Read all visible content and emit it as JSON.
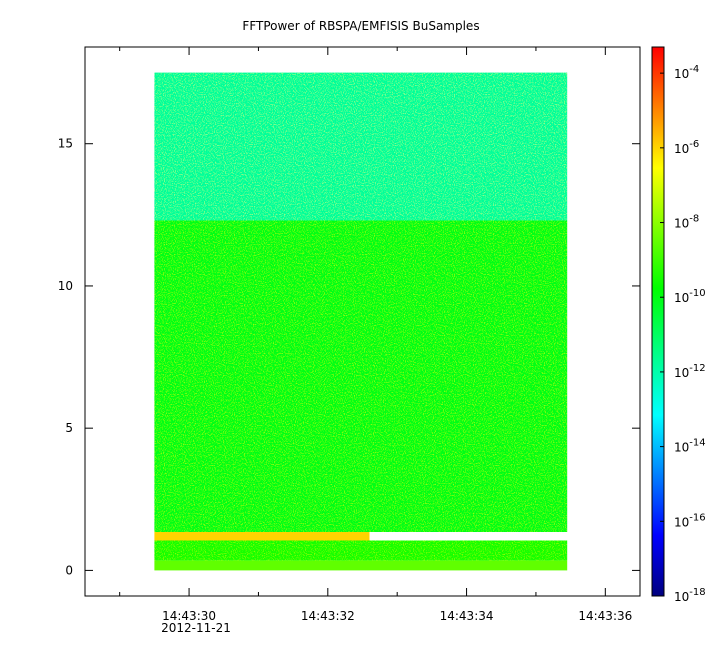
{
  "chart_data": {
    "type": "heatmap",
    "title": "FFTPower of RBSPA/EMFISIS  BuSamples",
    "xlabel": "",
    "ylabel": "",
    "x_axis": {
      "ticks": [
        {
          "t": 30,
          "label": "14:43:30"
        },
        {
          "t": 32,
          "label": "14:43:32"
        },
        {
          "t": 34,
          "label": "14:43:34"
        },
        {
          "t": 36,
          "label": "14:43:36"
        }
      ],
      "minor_ticks": [
        29,
        31,
        33,
        35
      ],
      "date_label": "2012-11-21",
      "range_seconds": [
        28.5,
        36.5
      ]
    },
    "y_axis": {
      "ticks": [
        0,
        5,
        10,
        15
      ],
      "range": [
        -0.9,
        18.4
      ]
    },
    "colorbar": {
      "scale": "log",
      "range_exponent": [
        -18,
        -3.3
      ],
      "ticks": [
        {
          "exp": -4,
          "base": "10",
          "sup": "-4"
        },
        {
          "exp": -6,
          "base": "10",
          "sup": "-6"
        },
        {
          "exp": -8,
          "base": "10",
          "sup": "-8"
        },
        {
          "exp": -10,
          "base": "10",
          "sup": "-10"
        },
        {
          "exp": -12,
          "base": "10",
          "sup": "-12"
        },
        {
          "exp": -14,
          "base": "10",
          "sup": "-14"
        },
        {
          "exp": -16,
          "base": "10",
          "sup": "-16"
        },
        {
          "exp": -18,
          "base": "10",
          "sup": "-18"
        }
      ],
      "colormap": [
        "#00007f",
        "#0000ff",
        "#007fff",
        "#00ffff",
        "#00ff7f",
        "#00ff00",
        "#7fff00",
        "#ffff00",
        "#ff7f00",
        "#ff0000"
      ]
    },
    "data_extent": {
      "t_start": 29.5,
      "t_end": 35.45,
      "f_min": 0.0,
      "f_max": 17.5
    },
    "bands": [
      {
        "f_from": 0.0,
        "f_to": 0.35,
        "log_power": -8.6,
        "note": "yellow strip at bottom"
      },
      {
        "f_from": 0.35,
        "f_to": 1.05,
        "log_power": -9.6
      },
      {
        "f_from": 1.05,
        "f_to": 1.35,
        "log_power": -6.0,
        "t_from": 29.5,
        "t_to": 32.6,
        "note": "orange-red emission streak"
      },
      {
        "f_from": 1.35,
        "f_to": 12.3,
        "log_power": -10.1
      },
      {
        "f_from": 12.3,
        "f_to": 17.5,
        "log_power": -11.8
      }
    ]
  }
}
